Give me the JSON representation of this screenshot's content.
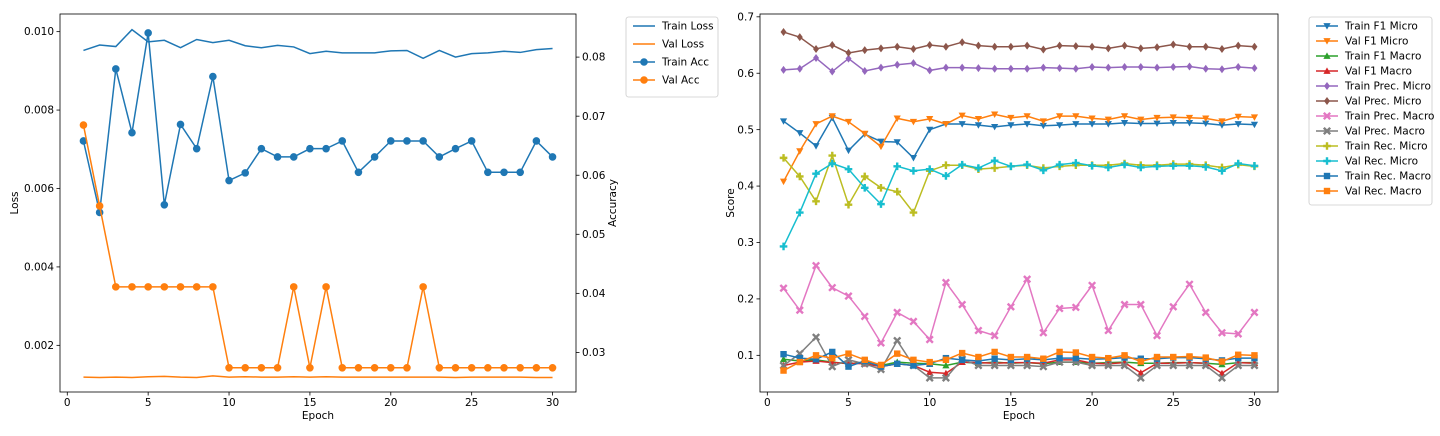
{
  "chart_data": [
    {
      "type": "line",
      "xlabel": "Epoch",
      "ylabel": "Loss",
      "y2label": "Accuracy",
      "xlim": [
        -0.45,
        31.45
      ],
      "ylim": [
        0.00081,
        0.01045
      ],
      "y2lim": [
        0.0233,
        0.0873
      ],
      "xticks": [
        0,
        5,
        10,
        15,
        20,
        25,
        30
      ],
      "yticks": [
        0.002,
        0.004,
        0.006,
        0.008,
        0.01
      ],
      "ytick_labels": [
        "0.002",
        "0.004",
        "0.006",
        "0.008",
        "0.010"
      ],
      "y2ticks": [
        0.03,
        0.04,
        0.05,
        0.06,
        0.07,
        0.08
      ],
      "y2tick_labels": [
        "0.03",
        "0.04",
        "0.05",
        "0.06",
        "0.07",
        "0.08"
      ],
      "legend": "outside-upper-right",
      "x": [
        1,
        2,
        3,
        4,
        5,
        6,
        7,
        8,
        9,
        10,
        11,
        12,
        13,
        14,
        15,
        16,
        17,
        18,
        19,
        20,
        21,
        22,
        23,
        24,
        25,
        26,
        27,
        28,
        29,
        30
      ],
      "series": [
        {
          "name": "Train Loss",
          "axis": "left",
          "color": "#1f77b4",
          "marker": "none",
          "values": [
            0.00952,
            0.00966,
            0.00962,
            0.01005,
            0.00974,
            0.00978,
            0.00959,
            0.0098,
            0.00972,
            0.00978,
            0.00964,
            0.00959,
            0.00965,
            0.00961,
            0.00944,
            0.0095,
            0.00946,
            0.00946,
            0.00946,
            0.00951,
            0.00952,
            0.00932,
            0.00952,
            0.00935,
            0.00944,
            0.00946,
            0.0095,
            0.00947,
            0.00954,
            0.00957
          ]
        },
        {
          "name": "Val Loss",
          "axis": "left",
          "color": "#ff7f0e",
          "marker": "none",
          "values": [
            0.00119,
            0.00118,
            0.00119,
            0.00118,
            0.0012,
            0.00121,
            0.00119,
            0.00118,
            0.00122,
            0.00119,
            0.0012,
            0.00119,
            0.00119,
            0.0012,
            0.00119,
            0.0012,
            0.00119,
            0.00119,
            0.00119,
            0.00119,
            0.00119,
            0.00119,
            0.00119,
            0.00118,
            0.00119,
            0.00119,
            0.00119,
            0.00119,
            0.00118,
            0.00118
          ]
        },
        {
          "name": "Train Acc",
          "axis": "right",
          "color": "#1f77b4",
          "marker": "circle",
          "values": [
            0.0658,
            0.0537,
            0.078,
            0.0672,
            0.0841,
            0.055,
            0.0686,
            0.0645,
            0.0767,
            0.0591,
            0.0604,
            0.0645,
            0.0631,
            0.0631,
            0.0645,
            0.0645,
            0.0658,
            0.0605,
            0.0631,
            0.0658,
            0.0658,
            0.0658,
            0.0631,
            0.0645,
            0.0658,
            0.0605,
            0.0605,
            0.0605,
            0.0658,
            0.0631
          ]
        },
        {
          "name": "Val Acc",
          "axis": "right",
          "color": "#ff7f0e",
          "marker": "circle",
          "values": [
            0.0685,
            0.0548,
            0.0411,
            0.0411,
            0.0411,
            0.0411,
            0.0411,
            0.0411,
            0.0411,
            0.0274,
            0.0274,
            0.0274,
            0.0274,
            0.0411,
            0.0274,
            0.0411,
            0.0274,
            0.0274,
            0.0274,
            0.0274,
            0.0274,
            0.0411,
            0.0274,
            0.0274,
            0.0274,
            0.0274,
            0.0274,
            0.0274,
            0.0274,
            0.0274
          ]
        }
      ]
    },
    {
      "type": "line",
      "xlabel": "Epoch",
      "ylabel": "Score",
      "xlim": [
        -0.45,
        31.45
      ],
      "ylim": [
        0.035,
        0.705
      ],
      "xticks": [
        0,
        5,
        10,
        15,
        20,
        25,
        30
      ],
      "yticks": [
        0.1,
        0.2,
        0.3,
        0.4,
        0.5,
        0.6,
        0.7
      ],
      "ytick_labels": [
        "0.1",
        "0.2",
        "0.3",
        "0.4",
        "0.5",
        "0.6",
        "0.7"
      ],
      "legend": "outside-upper-right",
      "x": [
        1,
        2,
        3,
        4,
        5,
        6,
        7,
        8,
        9,
        10,
        11,
        12,
        13,
        14,
        15,
        16,
        17,
        18,
        19,
        20,
        21,
        22,
        23,
        24,
        25,
        26,
        27,
        28,
        29,
        30
      ],
      "series": [
        {
          "name": "Train F1 Micro",
          "color": "#1f77b4",
          "marker": "triangle-down",
          "values": [
            0.515,
            0.494,
            0.471,
            0.521,
            0.463,
            0.492,
            0.479,
            0.478,
            0.45,
            0.5,
            0.51,
            0.51,
            0.508,
            0.505,
            0.508,
            0.51,
            0.507,
            0.508,
            0.51,
            0.51,
            0.51,
            0.512,
            0.511,
            0.511,
            0.512,
            0.512,
            0.511,
            0.508,
            0.51,
            0.509
          ]
        },
        {
          "name": "Val F1 Micro",
          "color": "#ff7f0e",
          "marker": "triangle-down",
          "values": [
            0.408,
            0.462,
            0.51,
            0.524,
            0.514,
            0.493,
            0.47,
            0.52,
            0.514,
            0.519,
            0.51,
            0.525,
            0.519,
            0.527,
            0.521,
            0.524,
            0.515,
            0.524,
            0.524,
            0.52,
            0.518,
            0.524,
            0.518,
            0.521,
            0.522,
            0.521,
            0.52,
            0.515,
            0.523,
            0.522
          ]
        },
        {
          "name": "Train F1 Macro",
          "color": "#2ca02c",
          "marker": "triangle-up",
          "values": [
            0.093,
            0.09,
            0.092,
            0.088,
            0.085,
            0.088,
            0.082,
            0.088,
            0.086,
            0.085,
            0.082,
            0.088,
            0.086,
            0.088,
            0.086,
            0.087,
            0.085,
            0.088,
            0.088,
            0.086,
            0.087,
            0.088,
            0.086,
            0.086,
            0.087,
            0.087,
            0.086,
            0.084,
            0.087,
            0.087
          ]
        },
        {
          "name": "Val F1 Macro",
          "color": "#d62728",
          "marker": "triangle-up",
          "values": [
            0.082,
            0.088,
            0.09,
            0.087,
            0.086,
            0.085,
            0.08,
            0.085,
            0.082,
            0.07,
            0.068,
            0.088,
            0.087,
            0.086,
            0.087,
            0.087,
            0.086,
            0.092,
            0.092,
            0.086,
            0.085,
            0.087,
            0.069,
            0.086,
            0.086,
            0.087,
            0.086,
            0.068,
            0.087,
            0.086
          ]
        },
        {
          "name": "Train Prec. Micro",
          "color": "#9467bd",
          "marker": "diamond",
          "values": [
            0.606,
            0.608,
            0.627,
            0.603,
            0.626,
            0.604,
            0.61,
            0.615,
            0.618,
            0.605,
            0.61,
            0.61,
            0.609,
            0.608,
            0.608,
            0.608,
            0.61,
            0.609,
            0.608,
            0.611,
            0.61,
            0.611,
            0.611,
            0.61,
            0.611,
            0.612,
            0.608,
            0.607,
            0.611,
            0.609
          ]
        },
        {
          "name": "Val Prec. Micro",
          "color": "#8c564b",
          "marker": "diamond",
          "values": [
            0.673,
            0.664,
            0.643,
            0.65,
            0.636,
            0.641,
            0.644,
            0.647,
            0.643,
            0.65,
            0.647,
            0.655,
            0.649,
            0.647,
            0.647,
            0.649,
            0.642,
            0.649,
            0.648,
            0.647,
            0.644,
            0.649,
            0.644,
            0.646,
            0.651,
            0.647,
            0.647,
            0.643,
            0.649,
            0.647
          ]
        },
        {
          "name": "Train Prec. Macro",
          "color": "#e377c2",
          "marker": "x",
          "values": [
            0.219,
            0.18,
            0.259,
            0.22,
            0.205,
            0.169,
            0.122,
            0.176,
            0.16,
            0.128,
            0.229,
            0.19,
            0.144,
            0.135,
            0.186,
            0.235,
            0.14,
            0.183,
            0.185,
            0.224,
            0.144,
            0.19,
            0.19,
            0.135,
            0.186,
            0.226,
            0.176,
            0.14,
            0.138,
            0.176
          ]
        },
        {
          "name": "Val Prec. Macro",
          "color": "#7f7f7f",
          "marker": "x",
          "values": [
            0.082,
            0.103,
            0.132,
            0.08,
            0.092,
            0.085,
            0.075,
            0.126,
            0.082,
            0.06,
            0.06,
            0.093,
            0.082,
            0.082,
            0.082,
            0.082,
            0.08,
            0.088,
            0.088,
            0.082,
            0.082,
            0.082,
            0.06,
            0.082,
            0.082,
            0.082,
            0.082,
            0.06,
            0.082,
            0.082
          ]
        },
        {
          "name": "Train Rec. Micro",
          "color": "#bcbd22",
          "marker": "plus",
          "values": [
            0.45,
            0.417,
            0.373,
            0.454,
            0.367,
            0.417,
            0.397,
            0.39,
            0.353,
            0.427,
            0.437,
            0.437,
            0.43,
            0.432,
            0.435,
            0.437,
            0.432,
            0.435,
            0.437,
            0.437,
            0.437,
            0.44,
            0.437,
            0.437,
            0.439,
            0.439,
            0.437,
            0.433,
            0.438,
            0.435
          ]
        },
        {
          "name": "Val Rec. Micro",
          "color": "#17becf",
          "marker": "plus",
          "values": [
            0.293,
            0.353,
            0.422,
            0.44,
            0.43,
            0.397,
            0.368,
            0.435,
            0.427,
            0.43,
            0.418,
            0.438,
            0.432,
            0.445,
            0.435,
            0.438,
            0.428,
            0.438,
            0.441,
            0.436,
            0.433,
            0.438,
            0.433,
            0.435,
            0.436,
            0.436,
            0.434,
            0.427,
            0.44,
            0.436
          ]
        },
        {
          "name": "Train Rec. Macro",
          "color": "#1f77b4",
          "marker": "square",
          "values": [
            0.102,
            0.095,
            0.093,
            0.106,
            0.08,
            0.09,
            0.08,
            0.085,
            0.082,
            0.085,
            0.095,
            0.092,
            0.09,
            0.094,
            0.092,
            0.094,
            0.092,
            0.095,
            0.095,
            0.093,
            0.094,
            0.096,
            0.094,
            0.094,
            0.096,
            0.096,
            0.094,
            0.091,
            0.095,
            0.095
          ]
        },
        {
          "name": "Val Rec. Macro",
          "color": "#ff7f0e",
          "marker": "square",
          "values": [
            0.073,
            0.088,
            0.1,
            0.095,
            0.103,
            0.092,
            0.083,
            0.103,
            0.092,
            0.088,
            0.092,
            0.104,
            0.097,
            0.106,
            0.097,
            0.097,
            0.094,
            0.106,
            0.105,
            0.097,
            0.095,
            0.1,
            0.089,
            0.097,
            0.097,
            0.098,
            0.096,
            0.089,
            0.101,
            0.1
          ]
        }
      ]
    }
  ]
}
